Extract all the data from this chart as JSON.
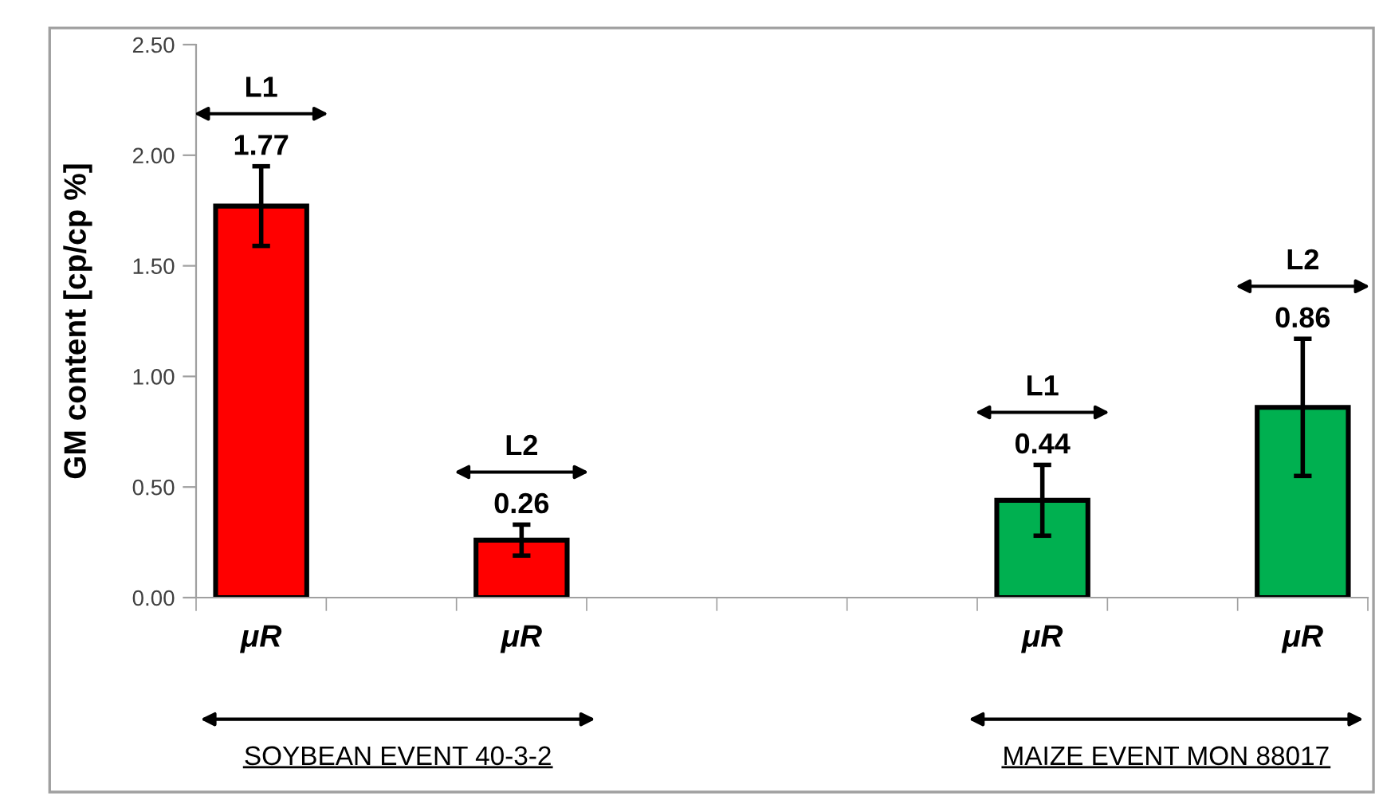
{
  "chart_data": {
    "type": "bar",
    "ylabel": "GM content [cp/cp %]",
    "categories": [
      "μR",
      null,
      "μR",
      null,
      null,
      null,
      "μR",
      null,
      "μR"
    ],
    "values": [
      1.77,
      null,
      0.26,
      null,
      null,
      null,
      0.44,
      null,
      0.86
    ],
    "colors": [
      "#ff0000",
      null,
      "#ff0000",
      null,
      null,
      null,
      "#00b050",
      null,
      "#00b050"
    ],
    "errors": [
      0.18,
      null,
      0.07,
      null,
      null,
      null,
      0.16,
      null,
      0.31
    ],
    "data_labels": true,
    "annotations": [
      "L1",
      "L2",
      "L1",
      "L2",
      "SOYBEAN EVENT 40-3-2",
      "MAIZE EVENT MON 88017"
    ],
    "ylim": [
      0,
      2.5
    ],
    "yticks": [
      {
        "value": 0,
        "label": "0.00"
      },
      {
        "value": 0.5,
        "label": "0.50"
      },
      {
        "value": 1,
        "label": "1.00"
      },
      {
        "value": 1.5,
        "label": "1.50"
      },
      {
        "value": 2,
        "label": "2.00"
      },
      {
        "value": 2.5,
        "label": "2.50"
      }
    ],
    "grid": false,
    "legend": false
  }
}
